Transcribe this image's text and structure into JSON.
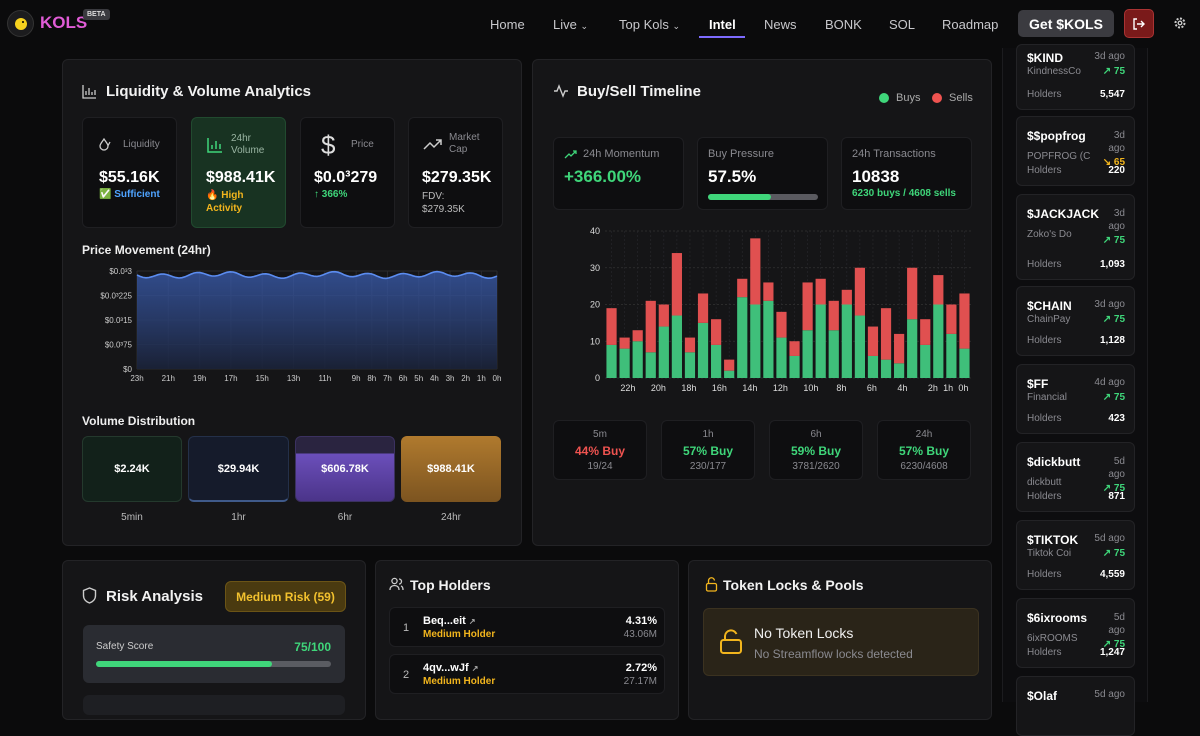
{
  "nav": {
    "brand": "KOLS",
    "beta": "BETA",
    "links": [
      "Home",
      "Live",
      "Top Kols",
      "Intel",
      "News",
      "BONK",
      "SOL",
      "Roadmap"
    ],
    "get_button": "Get $KOLS",
    "accent": "#7d6bff"
  },
  "liquidity": {
    "title": "Liquidity & Volume Analytics",
    "stats": [
      {
        "label": "Liquidity",
        "value": "$55.16K",
        "note": "✅ Sufficient"
      },
      {
        "label": "24hr Volume",
        "value": "$988.41K",
        "note": "🔥 High Activity"
      },
      {
        "label": "Price",
        "value": "$0.0³279",
        "note": "↑ 366%"
      },
      {
        "label": "Market Cap",
        "value": "$279.35K",
        "note": "FDV: $279.35K"
      }
    ],
    "price_title": "Price Movement (24hr)",
    "price_y_ticks": [
      "$0.0³3",
      "$0.0³225",
      "$0.0³15",
      "$0.0³75",
      "$0"
    ],
    "price_x_ticks": [
      "23h",
      "21h",
      "19h",
      "17h",
      "15h",
      "13h",
      "11h",
      "9h",
      "8h",
      "7h",
      "6h",
      "5h",
      "4h",
      "3h",
      "2h",
      "1h",
      "0h"
    ],
    "volume_title": "Volume Distribution",
    "volume": [
      {
        "period": "5min",
        "value": "$2.24K"
      },
      {
        "period": "1hr",
        "value": "$29.94K"
      },
      {
        "period": "6hr",
        "value": "$606.78K"
      },
      {
        "period": "24hr",
        "value": "$988.41K"
      }
    ]
  },
  "buysell": {
    "title": "Buy/Sell Timeline",
    "legend_buys": "Buys",
    "legend_sells": "Sells",
    "momentum_label": "24h Momentum",
    "momentum_value": "+366.00%",
    "pressure_label": "Buy Pressure",
    "pressure_value": "57.5%",
    "pressure_fraction": 0.575,
    "tx_label": "24h Transactions",
    "tx_value": "10838",
    "tx_note": "6230 buys / 4608 sells",
    "windows": [
      {
        "period": "5m",
        "pct": "44% Buy",
        "ratio": "19/24"
      },
      {
        "period": "1h",
        "pct": "57% Buy",
        "ratio": "230/177"
      },
      {
        "period": "6h",
        "pct": "59% Buy",
        "ratio": "3781/2620"
      },
      {
        "period": "24h",
        "pct": "57% Buy",
        "ratio": "6230/4608"
      }
    ]
  },
  "chart_data": {
    "type": "bar",
    "title": "Buy/Sell Timeline",
    "stacked": true,
    "x_tick_labels": [
      "22h",
      "20h",
      "18h",
      "16h",
      "14h",
      "12h",
      "10h",
      "8h",
      "6h",
      "4h",
      "2h",
      "1h",
      "0h"
    ],
    "ylim": [
      0,
      40
    ],
    "y_ticks": [
      0,
      10,
      20,
      30,
      40
    ],
    "series": [
      {
        "name": "Buys",
        "color": "#3fbf7a",
        "values": [
          9,
          8,
          10,
          7,
          14,
          17,
          7,
          15,
          9,
          2,
          22,
          20,
          21,
          11,
          6,
          13,
          20,
          13,
          20,
          17,
          6,
          5,
          4,
          16,
          9,
          20,
          12,
          8
        ]
      },
      {
        "name": "Sells",
        "color": "#e05050",
        "values": [
          10,
          3,
          3,
          14,
          6,
          17,
          4,
          8,
          7,
          3,
          5,
          18,
          5,
          7,
          4,
          13,
          7,
          8,
          4,
          13,
          8,
          14,
          8,
          14,
          7,
          8,
          8,
          15
        ]
      }
    ]
  },
  "risk": {
    "title": "Risk Analysis",
    "badge": "Medium Risk (59)",
    "safety_label": "Safety Score",
    "safety_value": "75/100",
    "safety_fraction": 0.75
  },
  "holders": {
    "title": "Top Holders",
    "rows": [
      {
        "rank": "1",
        "addr": "Beq...eit",
        "tag": "Medium Holder",
        "pct": "4.31%",
        "amount": "43.06M"
      },
      {
        "rank": "2",
        "addr": "4qv...wJf",
        "tag": "Medium Holder",
        "pct": "2.72%",
        "amount": "27.17M"
      }
    ]
  },
  "locks": {
    "title": "Token Locks & Pools",
    "heading": "No Token Locks",
    "sub": "No Streamflow locks detected"
  },
  "sidebar": [
    {
      "ticker": "$KIND",
      "ago": "3d ago",
      "name": "KindnessCo",
      "score": "75",
      "dir": "up",
      "holders_label": "Holders",
      "holders": "5,547"
    },
    {
      "ticker": "$$popfrog",
      "ago": "3d ago",
      "name": "POPFROG (C",
      "score": "65",
      "dir": "down",
      "holders_label": "Holders",
      "holders": "220"
    },
    {
      "ticker": "$JACKJACK",
      "ago": "3d ago",
      "name": "Zoko's Do",
      "score": "75",
      "dir": "up",
      "holders_label": "Holders",
      "holders": "1,093"
    },
    {
      "ticker": "$CHAIN",
      "ago": "3d ago",
      "name": "ChainPay",
      "score": "75",
      "dir": "up",
      "holders_label": "Holders",
      "holders": "1,128"
    },
    {
      "ticker": "$FF",
      "ago": "4d ago",
      "name": "Financial",
      "score": "75",
      "dir": "up",
      "holders_label": "Holders",
      "holders": "423"
    },
    {
      "ticker": "$dickbutt",
      "ago": "5d ago",
      "name": "dickbutt",
      "score": "75",
      "dir": "up",
      "holders_label": "Holders",
      "holders": "871"
    },
    {
      "ticker": "$TIKTOK",
      "ago": "5d ago",
      "name": "Tiktok Coi",
      "score": "75",
      "dir": "up",
      "holders_label": "Holders",
      "holders": "4,559"
    },
    {
      "ticker": "$6ixrooms",
      "ago": "5d ago",
      "name": "6ixROOMS",
      "score": "75",
      "dir": "up",
      "holders_label": "Holders",
      "holders": "1,247"
    },
    {
      "ticker": "$Olaf",
      "ago": "5d ago"
    }
  ]
}
